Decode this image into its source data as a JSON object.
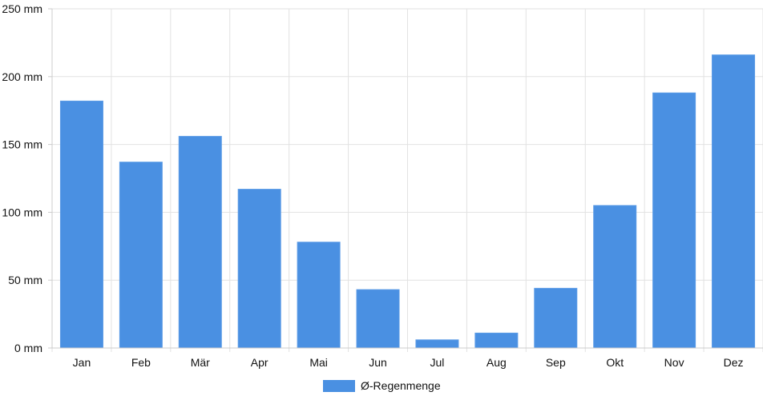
{
  "chart_data": {
    "type": "bar",
    "categories": [
      "Jan",
      "Feb",
      "Mär",
      "Apr",
      "Mai",
      "Jun",
      "Jul",
      "Aug",
      "Sep",
      "Okt",
      "Nov",
      "Dez"
    ],
    "series": [
      {
        "name": "Ø-Regenmenge",
        "values": [
          182,
          137,
          156,
          117,
          78,
          43,
          6,
          11,
          44,
          105,
          188,
          216
        ],
        "color": "#4a90e2"
      }
    ],
    "ylim": [
      0,
      250
    ],
    "yticks": [
      0,
      50,
      100,
      150,
      200,
      250
    ],
    "unit": "mm",
    "ytick_labels": [
      "0 mm",
      "50 mm",
      "100 mm",
      "150 mm",
      "200 mm",
      "250 mm"
    ],
    "grid": true,
    "legend": "bottom"
  }
}
